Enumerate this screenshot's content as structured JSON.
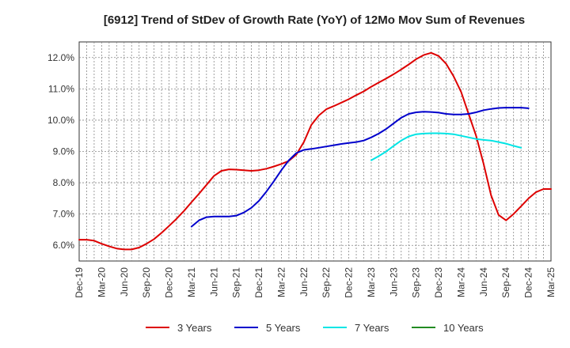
{
  "chart_data": {
    "type": "line",
    "title": "[6912]  Trend of StDev of Growth Rate (YoY) of 12Mo Mov Sum of Revenues",
    "xlabel": "",
    "ylabel": "",
    "ylim": [
      5.5,
      12.5
    ],
    "y_ticks": [
      6.0,
      7.0,
      8.0,
      9.0,
      10.0,
      11.0,
      12.0
    ],
    "y_tick_labels": [
      "6.0%",
      "7.0%",
      "8.0%",
      "9.0%",
      "10.0%",
      "11.0%",
      "12.0%"
    ],
    "x_tick_labels": [
      "Dec-19",
      "Mar-20",
      "Jun-20",
      "Sep-20",
      "Dec-20",
      "Mar-21",
      "Jun-21",
      "Sep-21",
      "Dec-21",
      "Mar-22",
      "Jun-22",
      "Sep-22",
      "Dec-22",
      "Mar-23",
      "Jun-23",
      "Sep-23",
      "Dec-23",
      "Mar-24",
      "Jun-24",
      "Sep-24",
      "Dec-24",
      "Mar-25"
    ],
    "x_start": "Dec-19",
    "months": 63,
    "grid": true,
    "series": [
      {
        "name": "3 Years",
        "color": "#dd0000",
        "start_index": 0,
        "values": [
          6.18,
          6.18,
          6.15,
          6.05,
          5.97,
          5.9,
          5.87,
          5.87,
          5.93,
          6.05,
          6.2,
          6.4,
          6.62,
          6.85,
          7.1,
          7.38,
          7.65,
          7.93,
          8.22,
          8.38,
          8.43,
          8.42,
          8.4,
          8.38,
          8.4,
          8.45,
          8.52,
          8.6,
          8.7,
          8.9,
          9.3,
          9.85,
          10.15,
          10.35,
          10.45,
          10.56,
          10.67,
          10.8,
          10.92,
          11.07,
          11.2,
          11.33,
          11.47,
          11.62,
          11.78,
          11.95,
          12.08,
          12.15,
          12.05,
          11.8,
          11.4,
          10.9,
          10.2,
          9.5,
          8.6,
          7.6,
          6.97,
          6.8,
          7.0,
          7.25,
          7.5,
          7.7,
          7.8,
          7.8
        ]
      },
      {
        "name": "5 Years",
        "color": "#0000cc",
        "start_index": 15,
        "values": [
          6.6,
          6.8,
          6.9,
          6.92,
          6.92,
          6.92,
          6.95,
          7.05,
          7.2,
          7.42,
          7.72,
          8.05,
          8.4,
          8.72,
          8.95,
          9.05,
          9.08,
          9.12,
          9.16,
          9.2,
          9.24,
          9.27,
          9.3,
          9.35,
          9.45,
          9.57,
          9.72,
          9.9,
          10.08,
          10.2,
          10.25,
          10.27,
          10.26,
          10.24,
          10.2,
          10.18,
          10.18,
          10.2,
          10.25,
          10.32,
          10.36,
          10.39,
          10.4,
          10.4,
          10.4,
          10.38
        ]
      },
      {
        "name": "7 Years",
        "color": "#00e5e5",
        "start_index": 39,
        "values": [
          8.72,
          8.85,
          9.0,
          9.18,
          9.35,
          9.48,
          9.55,
          9.57,
          9.58,
          9.58,
          9.57,
          9.55,
          9.5,
          9.45,
          9.4,
          9.37,
          9.35,
          9.3,
          9.25,
          9.18,
          9.12
        ]
      },
      {
        "name": "10 Years",
        "color": "#228b22",
        "start_index": 0,
        "values": []
      }
    ]
  }
}
